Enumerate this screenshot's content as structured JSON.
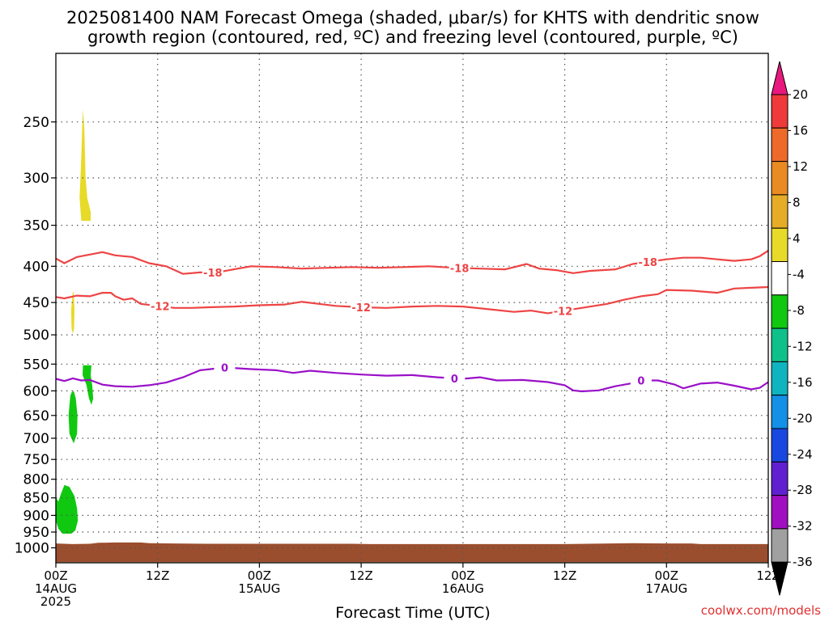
{
  "chart_data": {
    "type": "heatmap",
    "title_lines": [
      "2025081400 NAM Forecast Omega (shaded, μbar/s) for KHTS with dendritic snow",
      "growth region (contoured, red, ºC) and freezing level (contoured, purple, ºC)"
    ],
    "xlabel": "Forecast Time (UTC)",
    "credit": "coolwx.com/models",
    "x_range_hours": [
      0,
      84
    ],
    "x_ticks": [
      {
        "hour": 0,
        "lines": [
          "00Z",
          "14AUG",
          "2025"
        ]
      },
      {
        "hour": 12,
        "lines": [
          "12Z"
        ]
      },
      {
        "hour": 24,
        "lines": [
          "00Z",
          "15AUG"
        ]
      },
      {
        "hour": 36,
        "lines": [
          "12Z"
        ]
      },
      {
        "hour": 48,
        "lines": [
          "00Z",
          "16AUG"
        ]
      },
      {
        "hour": 60,
        "lines": [
          "12Z"
        ]
      },
      {
        "hour": 72,
        "lines": [
          "00Z",
          "17AUG"
        ]
      },
      {
        "hour": 84,
        "lines": [
          "12Z"
        ]
      }
    ],
    "y_axis": "pressure (log scale, inverted)",
    "y_range_mb": [
      1050,
      200
    ],
    "y_ticks": [
      250,
      300,
      350,
      400,
      450,
      500,
      550,
      600,
      650,
      700,
      750,
      800,
      850,
      900,
      950,
      1000
    ],
    "grid": "dotted",
    "colorbar": {
      "labels": [
        "20",
        "16",
        "12",
        "8",
        "4",
        "-4",
        "-8",
        "-12",
        "-16",
        "-20",
        "-24",
        "-28",
        "-32",
        "-36"
      ],
      "bins": [
        {
          "color": "#e8187e",
          "label": "above 20"
        },
        {
          "color": "#ee3a3a",
          "label": "16 to 20"
        },
        {
          "color": "#ee6a2a",
          "label": "12 to 16"
        },
        {
          "color": "#ea8a22",
          "label": "8 to 12"
        },
        {
          "color": "#e6ac28",
          "label": "4 to 8"
        },
        {
          "color": "#e8da28",
          "label": "4"
        },
        {
          "color": "#ffffff",
          "label": "-4 to 4"
        },
        {
          "color": "#10c810",
          "label": "-8 to -4"
        },
        {
          "color": "#10c08a",
          "label": "-12 to -8"
        },
        {
          "color": "#10b4c0",
          "label": "-16 to -12"
        },
        {
          "color": "#1490e6",
          "label": "-20 to -16"
        },
        {
          "color": "#1848e0",
          "label": "-24 to -20"
        },
        {
          "color": "#6020d0",
          "label": "-28 to -24"
        },
        {
          "color": "#a010c0",
          "label": "-32 to -28"
        },
        {
          "color": "#a0a0a0",
          "label": "-36 to -32"
        },
        {
          "color": "#000000",
          "label": "below -36"
        }
      ]
    },
    "contours": [
      {
        "name": "-18",
        "color": "#ee4444",
        "label": "-18",
        "label_hours": [
          18.5,
          47.6,
          69.8
        ],
        "points": [
          [
            0,
            390
          ],
          [
            1,
            396
          ],
          [
            2.5,
            388
          ],
          [
            4,
            385
          ],
          [
            5.5,
            382
          ],
          [
            7,
            386
          ],
          [
            9,
            388
          ],
          [
            11,
            396
          ],
          [
            13,
            400
          ],
          [
            15,
            410
          ],
          [
            17,
            408
          ],
          [
            19,
            408
          ],
          [
            21,
            404
          ],
          [
            23,
            400
          ],
          [
            26,
            401
          ],
          [
            29,
            403
          ],
          [
            32,
            402
          ],
          [
            35,
            401
          ],
          [
            38,
            402
          ],
          [
            41,
            401
          ],
          [
            44,
            400
          ],
          [
            47,
            402
          ],
          [
            50,
            403
          ],
          [
            53,
            404
          ],
          [
            55.5,
            397
          ],
          [
            57,
            403
          ],
          [
            59,
            405
          ],
          [
            61,
            409
          ],
          [
            63,
            406
          ],
          [
            66,
            404
          ],
          [
            68,
            397
          ],
          [
            70,
            394
          ],
          [
            72,
            391
          ],
          [
            74,
            389
          ],
          [
            76,
            389
          ],
          [
            78,
            391
          ],
          [
            80,
            393
          ],
          [
            82,
            391
          ],
          [
            83,
            387
          ],
          [
            84,
            380
          ]
        ]
      },
      {
        "name": "-12",
        "color": "#ee4444",
        "label": "-12",
        "label_hours": [
          12.3,
          36.0,
          59.8
        ],
        "points": [
          [
            0,
            442
          ],
          [
            1,
            444
          ],
          [
            2.5,
            440
          ],
          [
            4,
            441
          ],
          [
            5.5,
            436
          ],
          [
            6.5,
            436
          ],
          [
            7,
            441
          ],
          [
            8,
            446
          ],
          [
            9,
            444
          ],
          [
            10,
            452
          ],
          [
            12,
            455
          ],
          [
            14,
            458
          ],
          [
            16,
            458
          ],
          [
            18,
            457
          ],
          [
            21,
            456
          ],
          [
            24,
            454
          ],
          [
            27,
            453
          ],
          [
            29,
            449
          ],
          [
            31,
            452
          ],
          [
            33,
            455
          ],
          [
            36,
            457
          ],
          [
            39,
            458
          ],
          [
            42,
            456
          ],
          [
            45,
            455
          ],
          [
            48,
            456
          ],
          [
            51,
            460
          ],
          [
            54,
            464
          ],
          [
            56,
            462
          ],
          [
            58,
            466
          ],
          [
            60,
            462
          ],
          [
            62,
            458
          ],
          [
            65,
            452
          ],
          [
            67,
            446
          ],
          [
            69,
            441
          ],
          [
            71,
            438
          ],
          [
            72,
            432
          ],
          [
            75,
            433
          ],
          [
            78,
            436
          ],
          [
            80,
            430
          ],
          [
            82,
            429
          ],
          [
            84,
            428
          ]
        ]
      },
      {
        "name": "0",
        "color": "#9a10c8",
        "label": "0",
        "label_hours": [
          19.9,
          47.0,
          69.0
        ],
        "points": [
          [
            0,
            577
          ],
          [
            1,
            581
          ],
          [
            2,
            576
          ],
          [
            3,
            580
          ],
          [
            4,
            579
          ],
          [
            5.5,
            588
          ],
          [
            7,
            591
          ],
          [
            9,
            592
          ],
          [
            11,
            589
          ],
          [
            13,
            584
          ],
          [
            15,
            574
          ],
          [
            17,
            561
          ],
          [
            20,
            556
          ],
          [
            23,
            559
          ],
          [
            26,
            561
          ],
          [
            28,
            566
          ],
          [
            30,
            562
          ],
          [
            33,
            566
          ],
          [
            36,
            569
          ],
          [
            39,
            571
          ],
          [
            42,
            570
          ],
          [
            45,
            574
          ],
          [
            48,
            577
          ],
          [
            50,
            574
          ],
          [
            52,
            580
          ],
          [
            55,
            579
          ],
          [
            58,
            583
          ],
          [
            60,
            589
          ],
          [
            61,
            599
          ],
          [
            62,
            601
          ],
          [
            64,
            599
          ],
          [
            66,
            591
          ],
          [
            68,
            585
          ],
          [
            69,
            580
          ],
          [
            71,
            580
          ],
          [
            73,
            588
          ],
          [
            74,
            595
          ],
          [
            76,
            586
          ],
          [
            78,
            584
          ],
          [
            80,
            590
          ],
          [
            82,
            597
          ],
          [
            83,
            594
          ],
          [
            84,
            583
          ]
        ]
      }
    ],
    "shaded_regions": [
      {
        "name": "updraft-yellow-upper",
        "value_bin": "4 to 8",
        "color": "#e8da28",
        "points": [
          [
            3,
            345
          ],
          [
            2.8,
            320
          ],
          [
            2.9,
            300
          ],
          [
            3.0,
            280
          ],
          [
            3.1,
            255
          ],
          [
            3.2,
            240
          ],
          [
            3.35,
            255
          ],
          [
            3.45,
            280
          ],
          [
            3.5,
            300
          ],
          [
            3.7,
            320
          ],
          [
            4.1,
            335
          ],
          [
            4.1,
            345
          ]
        ]
      },
      {
        "name": "updraft-yellow-mid",
        "value_bin": "4 to 8",
        "color": "#e8da28",
        "points": [
          [
            2.0,
            435
          ],
          [
            1.8,
            460
          ],
          [
            1.85,
            490
          ],
          [
            2.0,
            498
          ],
          [
            2.15,
            490
          ],
          [
            2.2,
            460
          ],
          [
            2.1,
            435
          ]
        ]
      },
      {
        "name": "downdraft-green-a",
        "value_bin": "-8 to -4",
        "color": "#10c810",
        "points": [
          [
            3.2,
            552
          ],
          [
            3.15,
            570
          ],
          [
            3.6,
            588
          ],
          [
            3.9,
            615
          ],
          [
            4.2,
            628
          ],
          [
            4.4,
            615
          ],
          [
            4.3,
            590
          ],
          [
            4.1,
            570
          ],
          [
            4.2,
            552
          ]
        ]
      },
      {
        "name": "downdraft-green-b",
        "value_bin": "-8 to -4",
        "color": "#10c810",
        "points": [
          [
            1.7,
            610
          ],
          [
            1.5,
            650
          ],
          [
            1.6,
            690
          ],
          [
            2.1,
            712
          ],
          [
            2.5,
            690
          ],
          [
            2.55,
            650
          ],
          [
            2.35,
            615
          ],
          [
            2.1,
            600
          ],
          [
            1.85,
            603
          ]
        ]
      },
      {
        "name": "downdraft-green-c",
        "value_bin": "-8 to -4",
        "color": "#10c810",
        "points": [
          [
            0,
            848
          ],
          [
            0.3,
            860
          ],
          [
            0.55,
            842
          ],
          [
            1.0,
            815
          ],
          [
            1.6,
            820
          ],
          [
            2.2,
            845
          ],
          [
            2.5,
            880
          ],
          [
            2.6,
            915
          ],
          [
            2.3,
            945
          ],
          [
            1.8,
            955
          ],
          [
            0.8,
            955
          ],
          [
            0.3,
            940
          ],
          [
            0,
            915
          ]
        ]
      }
    ],
    "terrain": {
      "color": "#9a4e2e",
      "points": [
        [
          0,
          986
        ],
        [
          2,
          988
        ],
        [
          4,
          987
        ],
        [
          5,
          984
        ],
        [
          7,
          983
        ],
        [
          10,
          983
        ],
        [
          11,
          985
        ],
        [
          14,
          986
        ],
        [
          18,
          987
        ],
        [
          35,
          987
        ],
        [
          37,
          988
        ],
        [
          60,
          988
        ],
        [
          68,
          985
        ],
        [
          72,
          986
        ],
        [
          75,
          986
        ],
        [
          76,
          988
        ],
        [
          84,
          988
        ],
        [
          84,
          1048
        ],
        [
          0,
          1048
        ]
      ]
    }
  }
}
